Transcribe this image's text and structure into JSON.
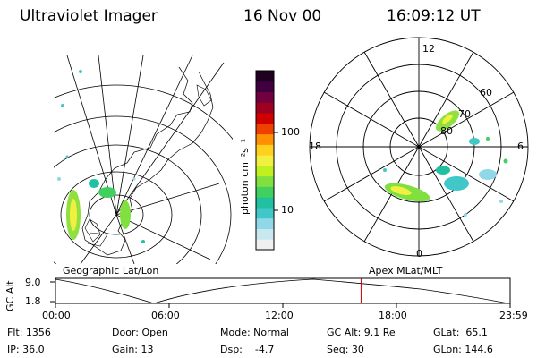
{
  "header": {
    "instrument": "Ultraviolet Imager",
    "date": "16 Nov 00",
    "time": "16:09:12 UT"
  },
  "colorbar": {
    "label": "photon cm⁻²s⁻¹",
    "tick_100": "100",
    "tick_10": "10",
    "colors": [
      "#f0f0f0",
      "#c8e8f0",
      "#90d8e8",
      "#40c8c8",
      "#20c0a0",
      "#40d060",
      "#80e040",
      "#c0f020",
      "#f0f040",
      "#ffd020",
      "#ff9000",
      "#f04000",
      "#d00000",
      "#a00020",
      "#700040",
      "#400040",
      "#200020"
    ]
  },
  "left_panel": {
    "label": "Geographic Lat/Lon"
  },
  "right_panel": {
    "label": "Apex MLat/MLT",
    "mlt_12": "12",
    "mlt_18": "18",
    "mlt_6": "6",
    "mlt_0": "0",
    "lat_60": "60",
    "lat_70": "70",
    "lat_80": "80"
  },
  "altitude_plot": {
    "ylabel": "GC Alt",
    "y_top": "9.0",
    "y_bottom": "1.8",
    "x_ticks": [
      "00:00",
      "06:00",
      "12:00",
      "18:00",
      "23:59"
    ],
    "cursor_time_fraction": 0.672,
    "cursor_color": "#c00000"
  },
  "footer": {
    "flt": "Flt: 1356",
    "ip": "IP: 36.0",
    "door": "Door: Open",
    "gain": "Gain: 13",
    "mode": "Mode: Normal",
    "dsp": "Dsp:    -4.7",
    "gcalt": "GC Alt: 9.1 Re",
    "seq": "Seq: 30",
    "glat": "GLat:  65.1",
    "glon": "GLon: 144.6"
  }
}
